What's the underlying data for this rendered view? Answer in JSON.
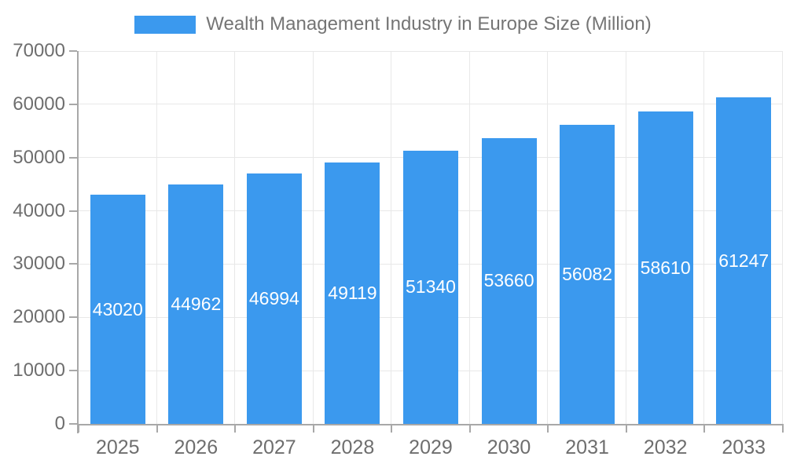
{
  "legend": {
    "label": "Wealth Management Industry in Europe Size (Million)"
  },
  "chart_data": {
    "type": "bar",
    "title": "Wealth Management Industry in Europe Size (Million)",
    "categories": [
      "2025",
      "2026",
      "2027",
      "2028",
      "2029",
      "2030",
      "2031",
      "2032",
      "2033"
    ],
    "values": [
      43020,
      44962,
      46994,
      49119,
      51340,
      53660,
      56082,
      58610,
      61247
    ],
    "xlabel": "",
    "ylabel": "",
    "ylim": [
      0,
      70000
    ],
    "y_ticks": [
      0,
      10000,
      20000,
      30000,
      40000,
      50000,
      60000,
      70000
    ],
    "grid": true,
    "legend_position": "top",
    "bar_labels_visible": true,
    "colors": {
      "bar": "#3B99EE",
      "bar_label": "#FFFFFF",
      "axis": "#A8A8A8",
      "grid": "#E8E8E8",
      "tick_label": "#6E6E6E",
      "title": "#757575"
    }
  }
}
